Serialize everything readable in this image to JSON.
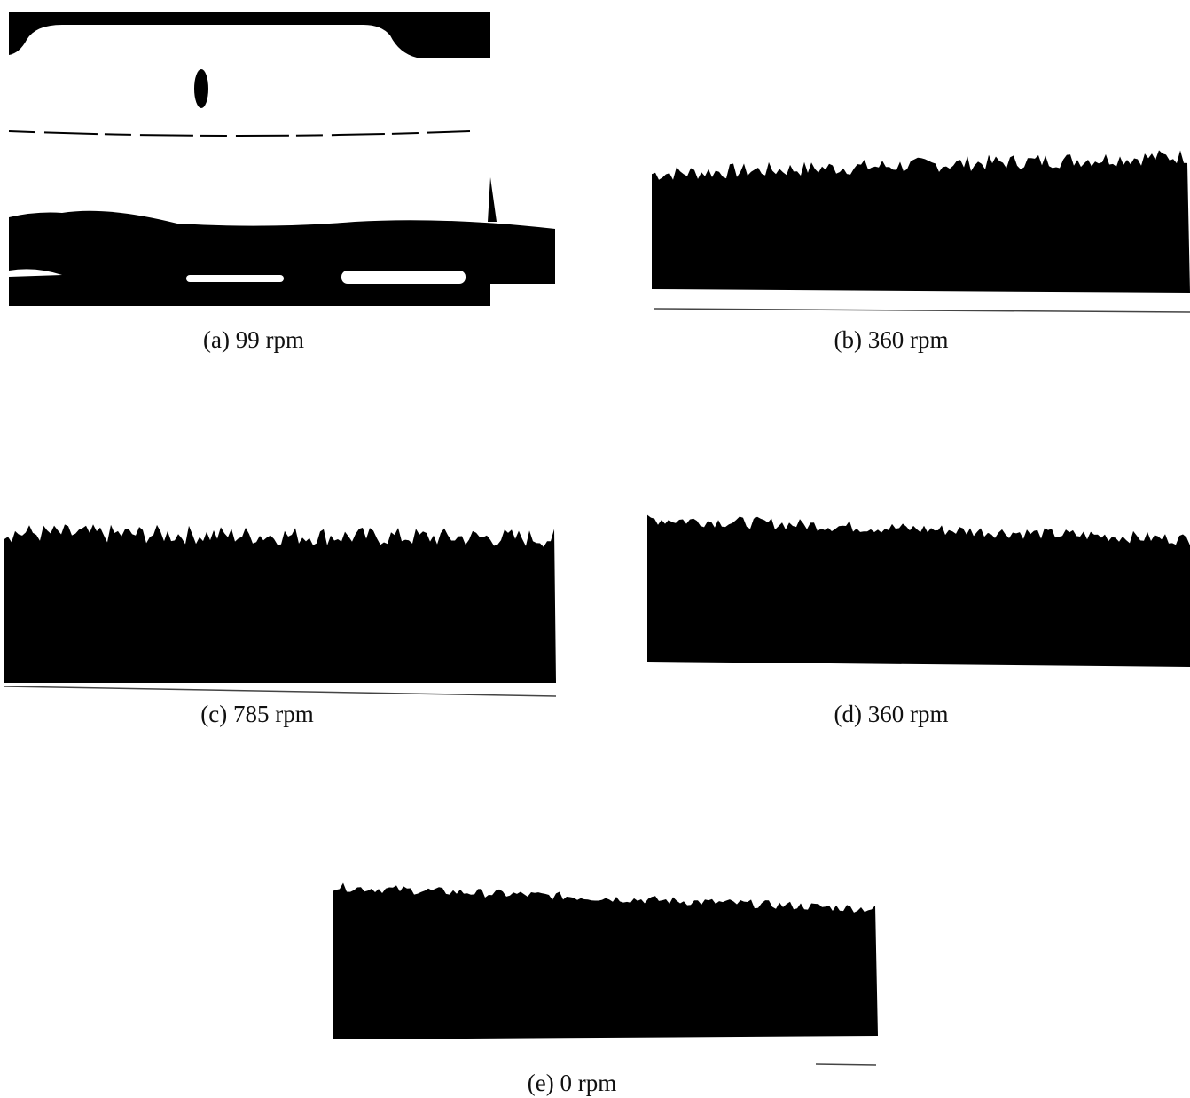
{
  "panels": [
    {
      "caption": "(a) 99 rpm"
    },
    {
      "caption": "(b) 360 rpm"
    },
    {
      "caption": "(c) 785 rpm"
    },
    {
      "caption": "(d) 360 rpm"
    },
    {
      "caption": "(e) 0 rpm"
    }
  ]
}
